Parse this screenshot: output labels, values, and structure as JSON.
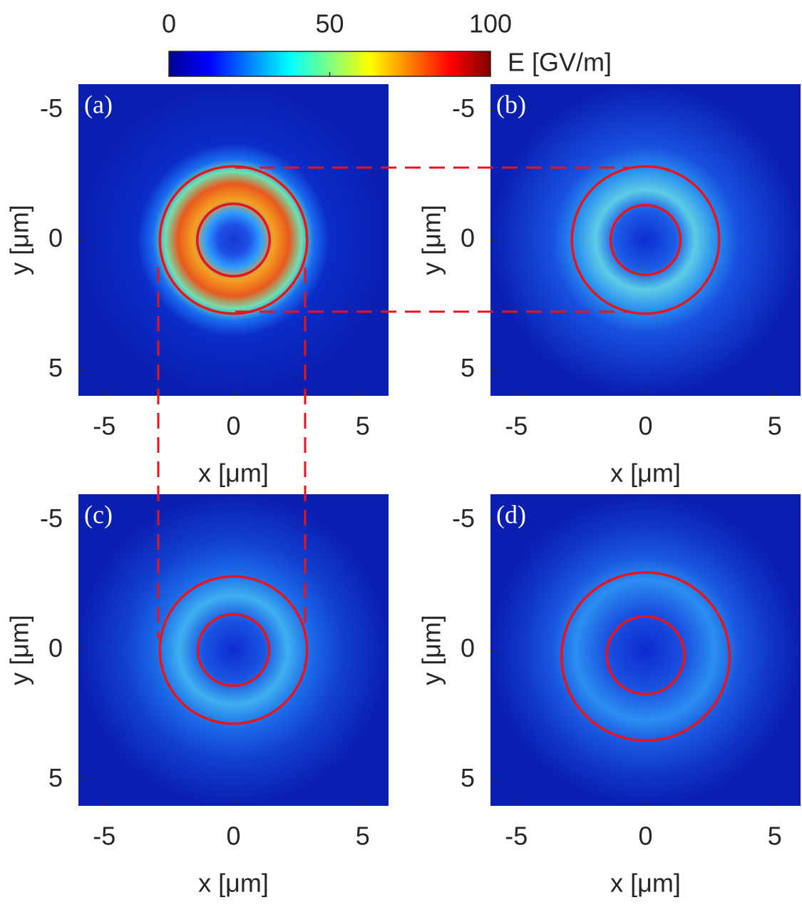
{
  "colorbar": {
    "label": "E [GV/m]",
    "clim": [
      0,
      100
    ],
    "cticks": [
      0,
      50,
      100
    ],
    "colormap": "jet"
  },
  "chart_data": [
    {
      "type": "heatmap",
      "panel_label": "(a)",
      "xlabel": "x [μm]",
      "ylabel": "y [μm]",
      "xlim": [
        -6,
        6
      ],
      "ylim": [
        -6,
        6
      ],
      "y_reversed": true,
      "xticks": [
        -5,
        0,
        5
      ],
      "yticks": [
        -5,
        0,
        5
      ],
      "circle_color": "#e8141c",
      "circles": [
        {
          "cx": 0,
          "cy": 0,
          "r": 2.85
        },
        {
          "cx": 0,
          "cy": 0,
          "r": 1.4
        }
      ]
    },
    {
      "type": "heatmap",
      "panel_label": "(b)",
      "xlabel": "x [μm]",
      "ylabel": "y [μm]",
      "xlim": [
        -6,
        6
      ],
      "ylim": [
        -6,
        6
      ],
      "y_reversed": true,
      "xticks": [
        -5,
        0,
        5
      ],
      "yticks": [
        -5,
        0,
        5
      ],
      "circle_color": "#e8141c",
      "circles": [
        {
          "cx": 0,
          "cy": 0,
          "r": 2.85
        },
        {
          "cx": 0,
          "cy": 0,
          "r": 1.35
        }
      ]
    },
    {
      "type": "heatmap",
      "panel_label": "(c)",
      "xlabel": "x [μm]",
      "ylabel": "y [μm]",
      "xlim": [
        -6,
        6
      ],
      "ylim": [
        -6,
        6
      ],
      "y_reversed": true,
      "xticks": [
        -5,
        0,
        5
      ],
      "yticks": [
        -5,
        0,
        5
      ],
      "circle_color": "#e8141c",
      "circles": [
        {
          "cx": 0,
          "cy": 0,
          "r": 2.85
        },
        {
          "cx": 0,
          "cy": 0,
          "r": 1.38
        }
      ]
    },
    {
      "type": "heatmap",
      "panel_label": "(d)",
      "xlabel": "x [μm]",
      "ylabel": "y [μm]",
      "xlim": [
        -6,
        6
      ],
      "ylim": [
        -6,
        6
      ],
      "y_reversed": true,
      "xticks": [
        -5,
        0,
        5
      ],
      "yticks": [
        -5,
        0,
        5
      ],
      "circle_color": "#e8141c",
      "circles": [
        {
          "cx": 0,
          "cy": 0.25,
          "r": 3.25
        },
        {
          "cx": 0,
          "cy": 0.2,
          "r": 1.5
        }
      ]
    }
  ]
}
